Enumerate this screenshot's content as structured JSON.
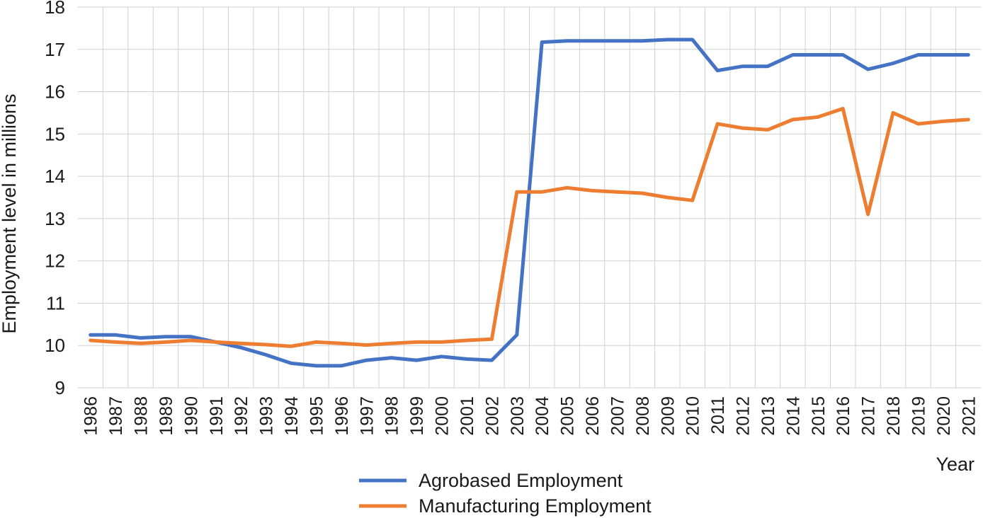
{
  "chart_data": {
    "type": "line",
    "xlabel": "Year",
    "ylabel": "Employment level in millions",
    "ylim": [
      9,
      18
    ],
    "yticks": [
      9,
      10,
      11,
      12,
      13,
      14,
      15,
      16,
      17,
      18
    ],
    "grid": true,
    "legend_position": "bottom",
    "categories": [
      "1986",
      "1987",
      "1988",
      "1989",
      "1990",
      "1991",
      "1992",
      "1993",
      "1994",
      "1995",
      "1996",
      "1997",
      "1998",
      "1999",
      "2000",
      "2001",
      "2002",
      "2003",
      "2004",
      "2005",
      "2006",
      "2007",
      "2008",
      "2009",
      "2010",
      "2011",
      "2012",
      "2013",
      "2014",
      "2015",
      "2016",
      "2017",
      "2018",
      "2019",
      "2020",
      "2021"
    ],
    "series": [
      {
        "name": "Agrobased Employment",
        "color": "#4472C4",
        "values": [
          10.25,
          10.25,
          10.18,
          10.21,
          10.21,
          10.08,
          9.95,
          9.78,
          9.58,
          9.52,
          9.52,
          9.65,
          9.71,
          9.65,
          9.74,
          9.68,
          9.65,
          10.25,
          17.17,
          17.2,
          17.2,
          17.2,
          17.2,
          17.23,
          17.23,
          16.5,
          16.6,
          16.6,
          16.87,
          16.87,
          16.87,
          16.53,
          16.67,
          16.87,
          16.87,
          16.87
        ]
      },
      {
        "name": "Manufacturing Employment",
        "color": "#ED7D31",
        "values": [
          10.12,
          10.08,
          10.05,
          10.08,
          10.12,
          10.08,
          10.05,
          10.02,
          9.98,
          10.08,
          10.05,
          10.01,
          10.05,
          10.08,
          10.08,
          10.12,
          10.15,
          13.63,
          13.63,
          13.73,
          13.66,
          13.63,
          13.6,
          13.5,
          13.43,
          15.24,
          15.14,
          15.1,
          15.34,
          15.4,
          15.6,
          13.1,
          15.5,
          15.24,
          15.3,
          15.34
        ]
      }
    ]
  }
}
